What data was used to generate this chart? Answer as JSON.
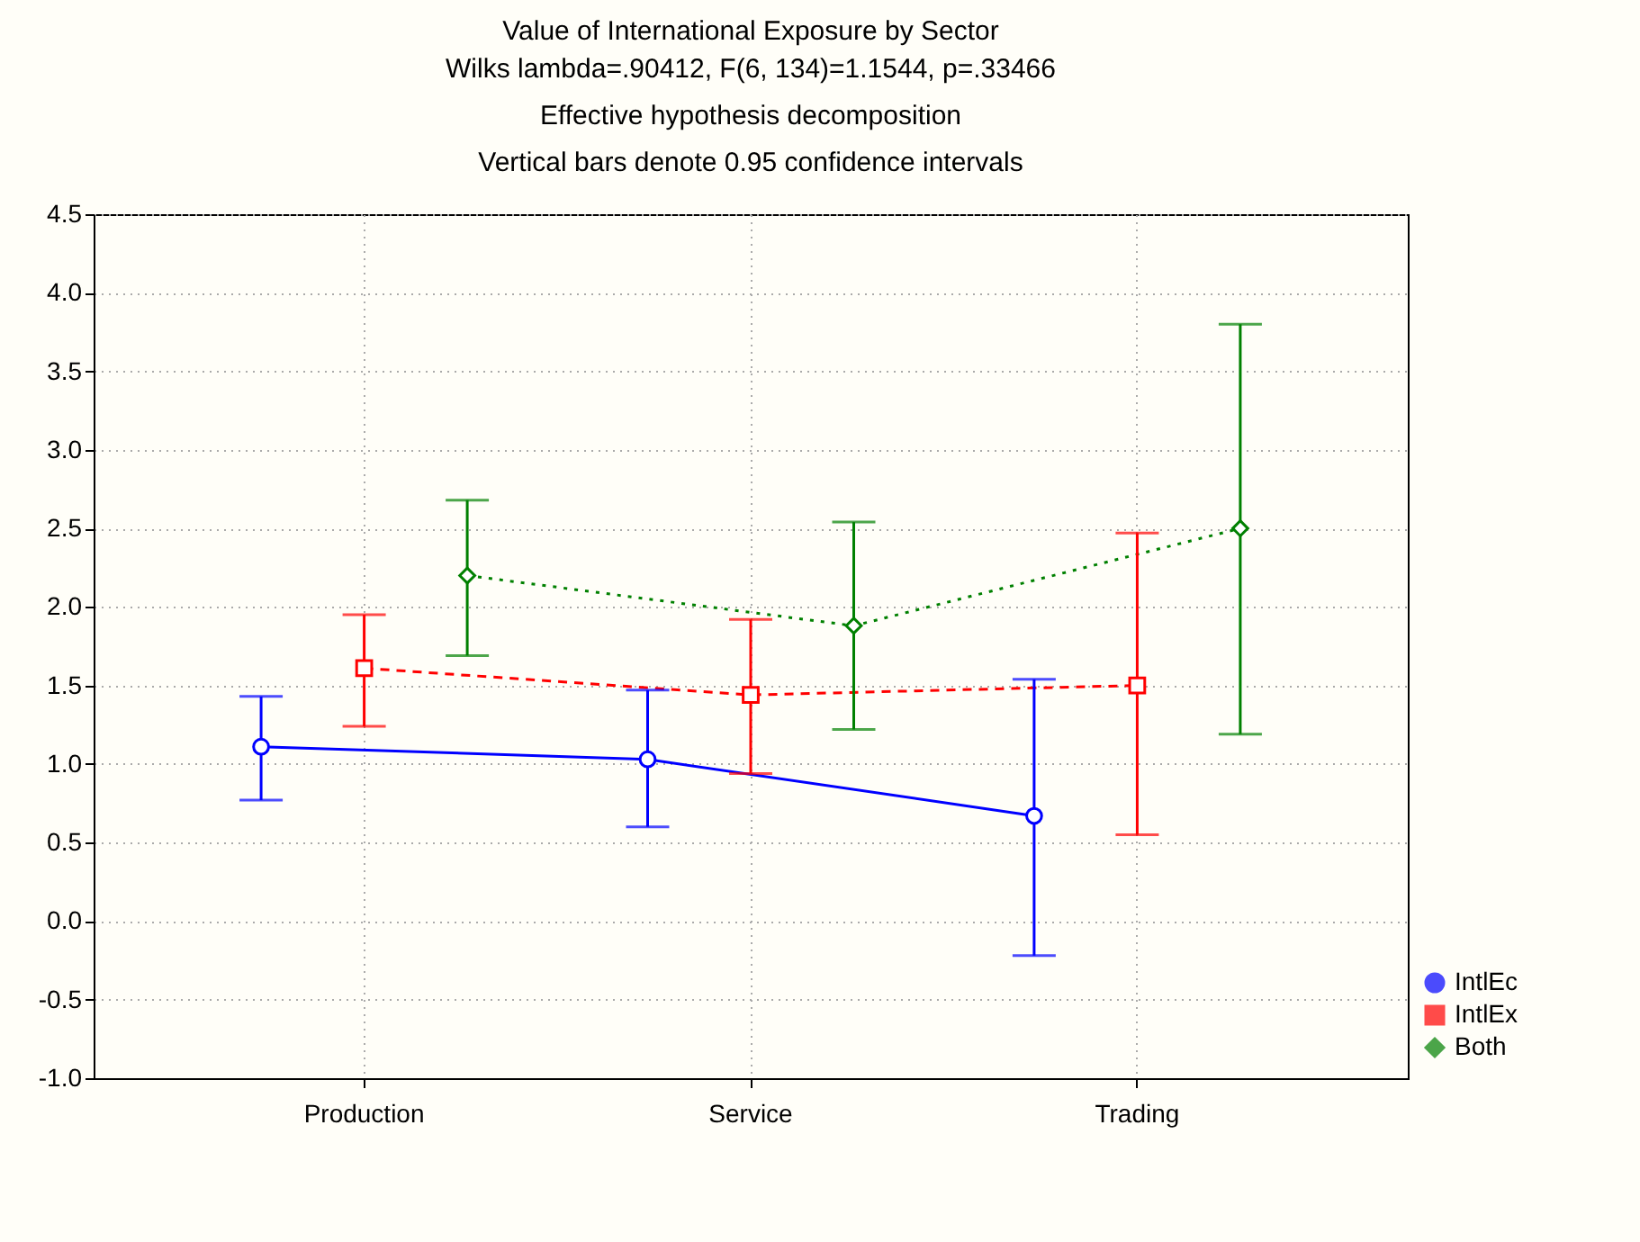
{
  "chart_data": {
    "type": "line",
    "title": "Value of International Exposure by Sector",
    "subtitle": "Wilks lambda=.90412, F(6, 134)=1.1544, p=.33466\nEffective hypothesis decomposition\nVertical bars denote 0.95 confidence intervals",
    "categories": [
      "Production",
      "Service",
      "Trading"
    ],
    "series": [
      {
        "name": "IntlEc",
        "color": "#0000ff",
        "marker": "circle",
        "line_style": "solid",
        "values": [
          1.11,
          1.03,
          0.67
        ],
        "errors": [
          [
            0.77,
            1.43
          ],
          [
            0.6,
            1.47
          ],
          [
            -0.22,
            1.54
          ]
        ]
      },
      {
        "name": "IntlEx",
        "color": "#ff0000",
        "marker": "square",
        "line_style": "dashed",
        "values": [
          1.61,
          1.44,
          1.5
        ],
        "errors": [
          [
            1.24,
            1.95
          ],
          [
            0.94,
            1.92
          ],
          [
            0.55,
            2.47
          ]
        ]
      },
      {
        "name": "Both",
        "color": "#008000",
        "marker": "diamond",
        "line_style": "dotted",
        "values": [
          2.2,
          1.88,
          2.5
        ],
        "errors": [
          [
            1.69,
            2.68
          ],
          [
            1.22,
            2.54
          ],
          [
            1.19,
            3.8
          ]
        ]
      }
    ],
    "ylim": [
      -1.0,
      4.5
    ],
    "yticks": [
      {
        "value": -1,
        "label": "-1.0"
      },
      {
        "value": -0.5,
        "label": "-0.5"
      },
      {
        "value": 0,
        "label": "0.0"
      },
      {
        "value": 0.5,
        "label": "0.5"
      },
      {
        "value": 1,
        "label": "1.0"
      },
      {
        "value": 1.5,
        "label": "1.5"
      },
      {
        "value": 2,
        "label": "2.0"
      },
      {
        "value": 2.5,
        "label": "2.5"
      },
      {
        "value": 3,
        "label": "3.0"
      },
      {
        "value": 3.5,
        "label": "3.5"
      },
      {
        "value": 4,
        "label": "4.0"
      },
      {
        "value": 4.5,
        "label": "4.5"
      }
    ],
    "grid": true,
    "legend": "bottom right"
  }
}
